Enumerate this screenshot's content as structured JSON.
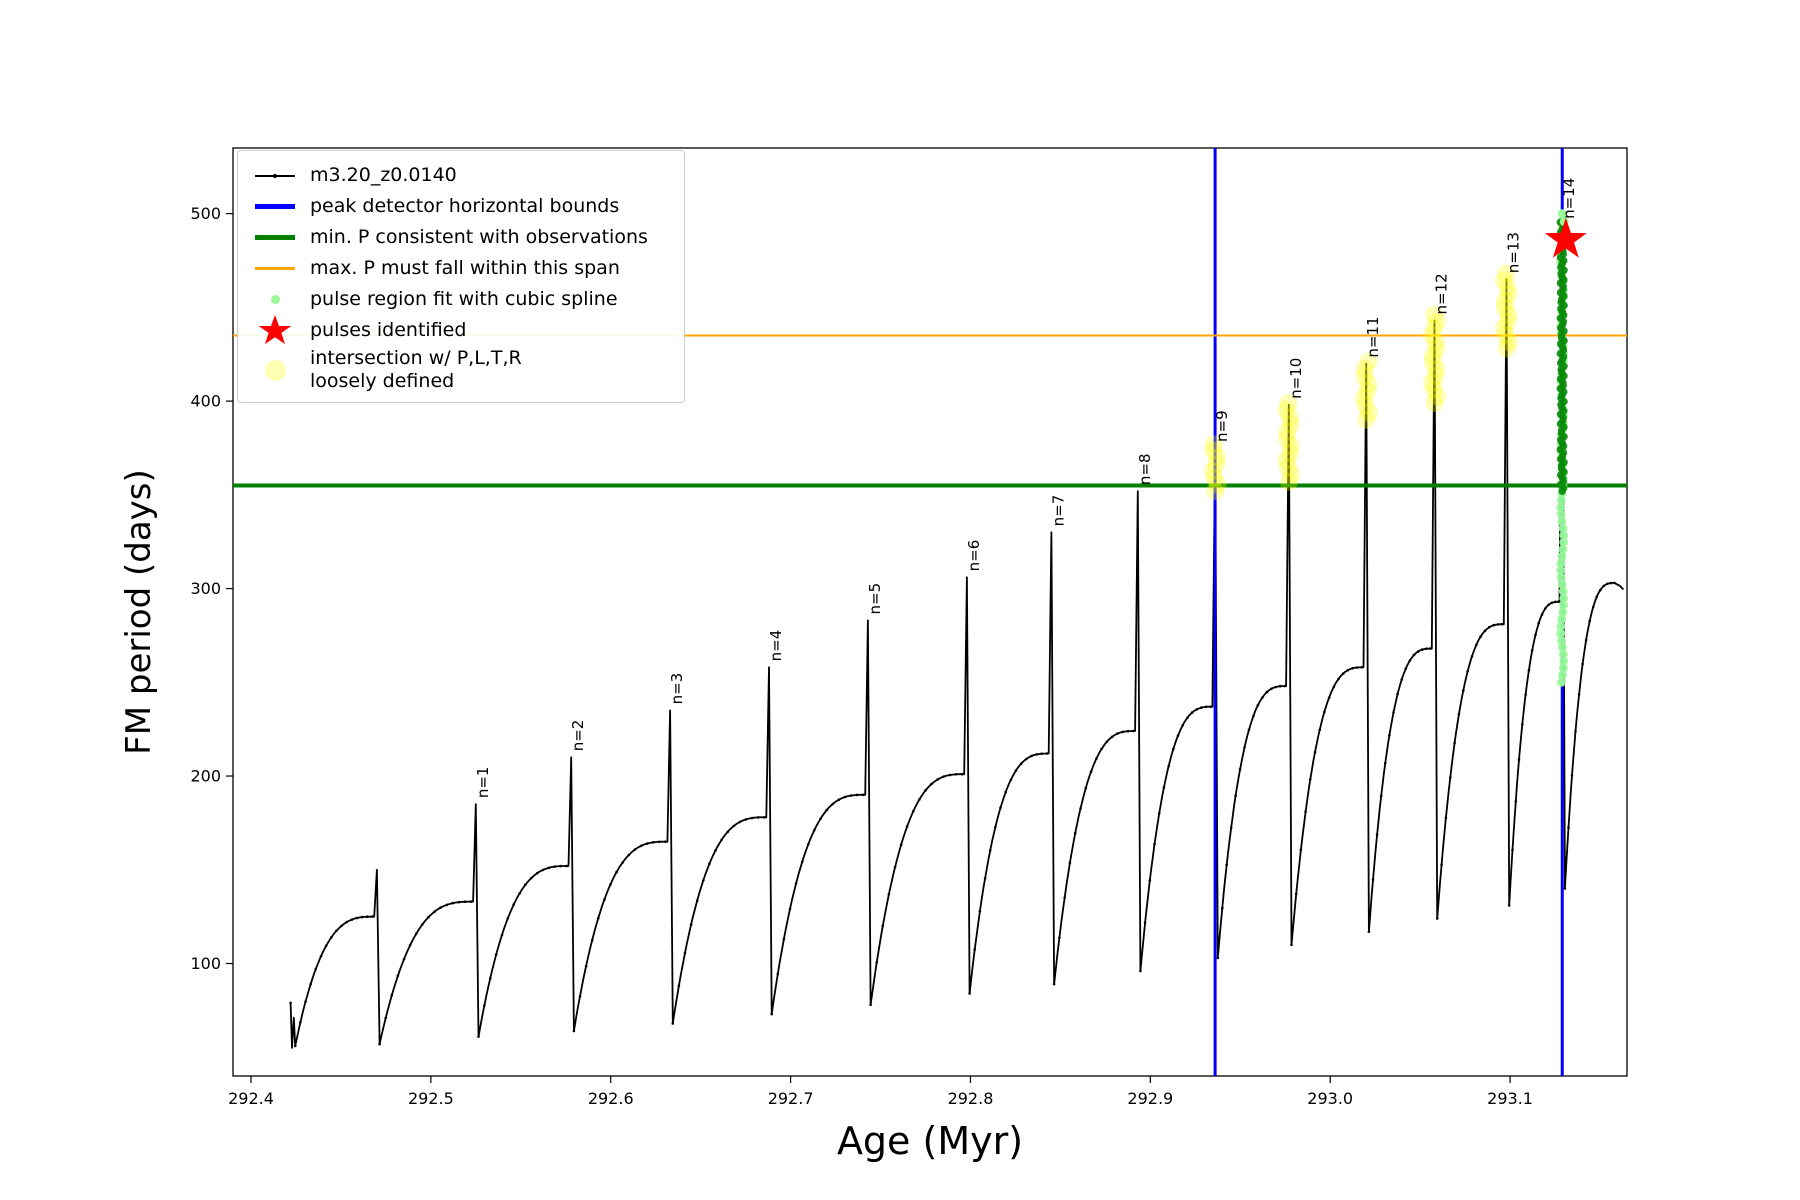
{
  "chart_data": {
    "type": "line",
    "title": "",
    "xlabel": "Age (Myr)",
    "ylabel": "FM period (days)",
    "xlim": [
      292.39,
      293.165
    ],
    "ylim": [
      40,
      535
    ],
    "grid": false,
    "legend_position": "upper left",
    "xticks": [
      {
        "v": 292.4,
        "label": "292.4"
      },
      {
        "v": 292.5,
        "label": "292.5"
      },
      {
        "v": 292.6,
        "label": "292.6"
      },
      {
        "v": 292.7,
        "label": "292.7"
      },
      {
        "v": 292.8,
        "label": "292.8"
      },
      {
        "v": 292.9,
        "label": "292.9"
      },
      {
        "v": 293.0,
        "label": "293.0"
      },
      {
        "v": 293.1,
        "label": "293.1"
      }
    ],
    "yticks": [
      {
        "v": 100,
        "label": "100"
      },
      {
        "v": 200,
        "label": "200"
      },
      {
        "v": 300,
        "label": "300"
      },
      {
        "v": 400,
        "label": "400"
      },
      {
        "v": 500,
        "label": "500"
      }
    ],
    "series": {
      "name": "m3.20_z0.0140",
      "color": "#000000",
      "start": {
        "x": 292.4235,
        "y_top": 79,
        "y_min": 55
      },
      "end": {
        "x": 293.158,
        "y": 303
      },
      "pulses": [
        {
          "label": "",
          "x": 292.47,
          "peak": 150,
          "pre_max": 125,
          "post_min": 57
        },
        {
          "label": "n=1",
          "x": 292.525,
          "peak": 185,
          "pre_max": 133,
          "post_min": 61
        },
        {
          "label": "n=2",
          "x": 292.578,
          "peak": 210,
          "pre_max": 152,
          "post_min": 64
        },
        {
          "label": "n=3",
          "x": 292.633,
          "peak": 235,
          "pre_max": 165,
          "post_min": 68
        },
        {
          "label": "n=4",
          "x": 292.688,
          "peak": 258,
          "pre_max": 178,
          "post_min": 73
        },
        {
          "label": "n=5",
          "x": 292.743,
          "peak": 283,
          "pre_max": 190,
          "post_min": 78
        },
        {
          "label": "n=6",
          "x": 292.798,
          "peak": 306,
          "pre_max": 201,
          "post_min": 84
        },
        {
          "label": "n=7",
          "x": 292.845,
          "peak": 330,
          "pre_max": 212,
          "post_min": 89
        },
        {
          "label": "n=8",
          "x": 292.893,
          "peak": 352,
          "pre_max": 224,
          "post_min": 96
        },
        {
          "label": "n=9",
          "x": 292.936,
          "peak": 375,
          "pre_max": 237,
          "post_min": 103
        },
        {
          "label": "n=10",
          "x": 292.977,
          "peak": 398,
          "pre_max": 248,
          "post_min": 110
        },
        {
          "label": "n=11",
          "x": 293.02,
          "peak": 420,
          "pre_max": 258,
          "post_min": 117
        },
        {
          "label": "n=12",
          "x": 293.058,
          "peak": 443,
          "pre_max": 268,
          "post_min": 124
        },
        {
          "label": "n=13",
          "x": 293.098,
          "peak": 465,
          "pre_max": 281,
          "post_min": 131
        },
        {
          "label": "n=14",
          "x": 293.129,
          "peak": 494,
          "pre_max": 293,
          "post_min": 140
        }
      ]
    },
    "vlines": {
      "label": "peak detector horizontal bounds",
      "color": "#0000ff",
      "width": 3,
      "x": [
        292.936,
        293.129
      ]
    },
    "hlines": [
      {
        "label": "min. P consistent with observations",
        "color": "#008000",
        "y": 355,
        "width": 4
      },
      {
        "label": "max. P must fall within this span",
        "color": "#ffa500",
        "y": 435,
        "width": 2
      }
    ],
    "star": {
      "label": "pulses identified",
      "color": "#ff0000",
      "x": 293.131,
      "y": 486
    },
    "spline_dots": {
      "label": "pulse region fit with cubic spline",
      "color": "#98fb98",
      "x": 293.129,
      "y_from": 250,
      "y_to": 500
    },
    "dense_green_dots": {
      "color": "#0a8a0a",
      "x": 293.129,
      "y_from": 352,
      "y_to": 496
    },
    "yellow_dots": {
      "label": "intersection w/ P,L,T,R\nloosely defined",
      "color": "#ffff00",
      "clusters": [
        {
          "x": 292.936,
          "y_from": 352,
          "y_to": 377
        },
        {
          "x": 292.977,
          "y_from": 357,
          "y_to": 399
        },
        {
          "x": 293.02,
          "y_from": 390,
          "y_to": 421
        },
        {
          "x": 293.058,
          "y_from": 399,
          "y_to": 446
        },
        {
          "x": 293.098,
          "y_from": 428,
          "y_to": 468
        }
      ]
    },
    "legend": [
      {
        "label": "m3.20_z0.0140",
        "color": "#000000",
        "type": "line-dot"
      },
      {
        "label": "peak detector horizontal bounds",
        "color": "#0000ff",
        "type": "thick-line"
      },
      {
        "label": "min. P consistent with observations",
        "color": "#008000",
        "type": "thick-line"
      },
      {
        "label": "max. P must fall within this span",
        "color": "#ffa500",
        "type": "thin-line"
      },
      {
        "label": "pulse region fit with cubic spline",
        "color": "#98fb98",
        "type": "small-dot"
      },
      {
        "label": "pulses identified",
        "color": "#ff0000",
        "type": "star"
      },
      {
        "label": "intersection w/ P,L,T,R\nloosely defined",
        "color": "#ffff99",
        "type": "big-dot"
      }
    ]
  }
}
